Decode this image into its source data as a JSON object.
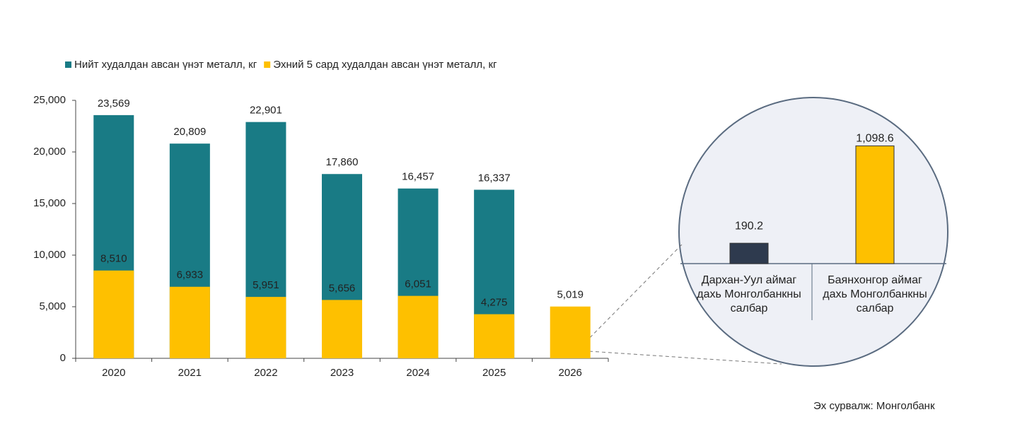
{
  "chart_data": [
    {
      "type": "bar",
      "categories": [
        "2020",
        "2021",
        "2022",
        "2023",
        "2024",
        "2025",
        "2026"
      ],
      "series": [
        {
          "name": "Нийт худалдан авсан үнэт металл, кг",
          "color": "#197b85",
          "values": [
            23569,
            20809,
            22901,
            17860,
            16457,
            16337,
            null
          ],
          "value_labels": [
            "23,569",
            "20,809",
            "22,901",
            "17,860",
            "16,457",
            "16,337",
            null
          ]
        },
        {
          "name": "Эхний 5 сард худалдан авсан үнэт металл, кг",
          "color": "#fec000",
          "values": [
            8510,
            6933,
            5951,
            5656,
            6051,
            4275,
            5019
          ],
          "value_labels": [
            "8,510",
            "6,933",
            "5,951",
            "5,656",
            "6,051",
            "4,275",
            "5,019"
          ]
        }
      ],
      "ylim": [
        0,
        25000
      ],
      "yticks": [
        0,
        {
          "value": 5000,
          "label": "5,000"
        },
        {
          "value": 10000,
          "label": "10,000"
        },
        {
          "value": 15000,
          "label": "15,000"
        },
        {
          "value": 20000,
          "label": "20,000"
        },
        {
          "value": 25000,
          "label": "25,000"
        }
      ],
      "legend": "top-left"
    },
    {
      "type": "bar",
      "categories": [
        "Дархан-Уул аймаг дахь Монголбанкны салбар",
        "Баянхонгор аймаг дахь Монголбанкны салбар"
      ],
      "values": [
        190.2,
        1098.6
      ],
      "value_labels": [
        "190.2",
        "1,098.6"
      ],
      "colors": [
        "#2e3a4e",
        "#fec000"
      ],
      "ylim": [
        0,
        1200
      ]
    }
  ],
  "source": "Эх сурвалж: Монголбанк"
}
